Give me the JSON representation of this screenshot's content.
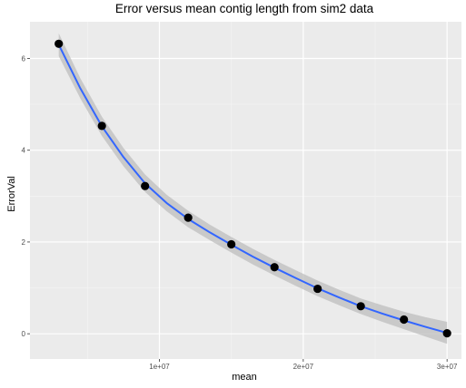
{
  "chart_data": {
    "type": "scatter",
    "title": "Error versus mean contig length from sim2 data",
    "xlabel": "mean",
    "ylabel": "ErrorVal",
    "xlim": [
      1000000,
      31000000
    ],
    "ylim": [
      -0.55,
      6.8
    ],
    "x_ticks": [
      10000000,
      20000000,
      30000000
    ],
    "x_tick_labels": [
      "1e+07",
      "2e+07",
      "3e+07"
    ],
    "y_ticks": [
      0,
      2,
      4,
      6
    ],
    "y_tick_labels": [
      "0",
      "2",
      "4",
      "6"
    ],
    "grid": true,
    "legend": "none",
    "series": [
      {
        "values": [
          {
            "x": 3000000,
            "y": 6.32
          },
          {
            "x": 6000000,
            "y": 4.53
          },
          {
            "x": 9000000,
            "y": 3.22
          },
          {
            "x": 12000000,
            "y": 2.53
          },
          {
            "x": 15000000,
            "y": 1.95
          },
          {
            "x": 18000000,
            "y": 1.45
          },
          {
            "x": 21000000,
            "y": 0.98
          },
          {
            "x": 24000000,
            "y": 0.6
          },
          {
            "x": 27000000,
            "y": 0.31
          },
          {
            "x": 30000000,
            "y": 0.01
          }
        ]
      }
    ],
    "smooth": {
      "method": "loess",
      "colors": {
        "line": "#3366ff",
        "band": "#bdbdbd"
      },
      "values": [
        {
          "x": 3000000,
          "y": 6.3,
          "lo": 6.05,
          "hi": 6.55
        },
        {
          "x": 4500000,
          "y": 5.35,
          "lo": 5.13,
          "hi": 5.57
        },
        {
          "x": 6000000,
          "y": 4.52,
          "lo": 4.31,
          "hi": 4.73
        },
        {
          "x": 7500000,
          "y": 3.85,
          "lo": 3.65,
          "hi": 4.05
        },
        {
          "x": 9000000,
          "y": 3.28,
          "lo": 3.09,
          "hi": 3.47
        },
        {
          "x": 10500000,
          "y": 2.85,
          "lo": 2.67,
          "hi": 3.03
        },
        {
          "x": 12000000,
          "y": 2.5,
          "lo": 2.32,
          "hi": 2.68
        },
        {
          "x": 13500000,
          "y": 2.21,
          "lo": 2.04,
          "hi": 2.38
        },
        {
          "x": 15000000,
          "y": 1.94,
          "lo": 1.77,
          "hi": 2.11
        },
        {
          "x": 16500000,
          "y": 1.68,
          "lo": 1.51,
          "hi": 1.85
        },
        {
          "x": 18000000,
          "y": 1.44,
          "lo": 1.27,
          "hi": 1.61
        },
        {
          "x": 19500000,
          "y": 1.21,
          "lo": 1.04,
          "hi": 1.38
        },
        {
          "x": 21000000,
          "y": 0.99,
          "lo": 0.82,
          "hi": 1.16
        },
        {
          "x": 22500000,
          "y": 0.79,
          "lo": 0.62,
          "hi": 0.96
        },
        {
          "x": 24000000,
          "y": 0.6,
          "lo": 0.43,
          "hi": 0.77
        },
        {
          "x": 25500000,
          "y": 0.44,
          "lo": 0.26,
          "hi": 0.62
        },
        {
          "x": 27000000,
          "y": 0.29,
          "lo": 0.1,
          "hi": 0.48
        },
        {
          "x": 28500000,
          "y": 0.15,
          "lo": -0.06,
          "hi": 0.36
        },
        {
          "x": 30000000,
          "y": 0.02,
          "lo": -0.22,
          "hi": 0.26
        }
      ]
    },
    "colors": {
      "panel": "#ebebeb",
      "grid_major": "#ffffff",
      "point": "#000000"
    }
  }
}
